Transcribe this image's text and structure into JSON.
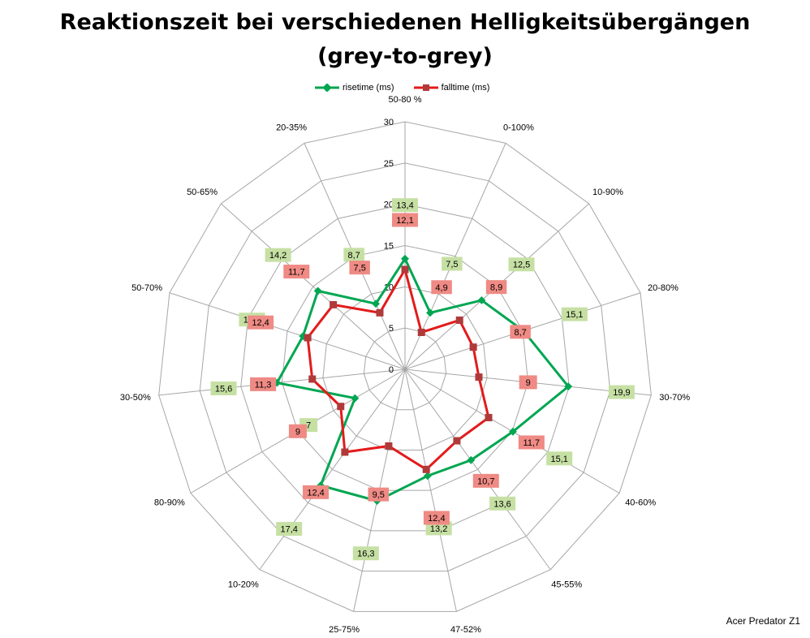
{
  "title_line1": "Reaktionszeit bei verschiedenen Helligkeitsübergängen",
  "title_line2": "(grey-to-grey)",
  "credit": "Acer Predator Z1",
  "colors": {
    "risetime": "#00a651",
    "falltime": "#e31b1b",
    "rise_label_bg": "#c6e0a4",
    "fall_label_bg": "#ef8a84",
    "grid": "#a6a6a6"
  },
  "chart_data": {
    "type": "radar",
    "categories": [
      "50-80 %",
      "0-100%",
      "10-90%",
      "20-80%",
      "30-70%",
      "40-60%",
      "45-55%",
      "47-52%",
      "25-75%",
      "10-20%",
      "80-90%",
      "30-50%",
      "50-70%",
      "50-65%",
      "20-35%"
    ],
    "rlim": [
      0,
      30
    ],
    "ticks": [
      0,
      5,
      10,
      15,
      20,
      25,
      30
    ],
    "legend_position": "top",
    "series": [
      {
        "name": "risetime (ms)",
        "values": [
          13.4,
          7.5,
          12.5,
          15.1,
          19.9,
          15.1,
          13.6,
          13.2,
          16.3,
          17.4,
          7,
          15.6,
          13,
          14.2,
          8.7
        ],
        "labels": [
          "13,4",
          "7,5",
          "12,5",
          "15,1",
          "19,9",
          "15,1",
          "13,6",
          "13,2",
          "16,3",
          "17,4",
          "7",
          "15,6",
          "13,0",
          "14,2",
          "8,7"
        ]
      },
      {
        "name": "falltime (ms)",
        "values": [
          12.1,
          4.9,
          8.9,
          8.7,
          9,
          11.7,
          10.7,
          12.4,
          9.5,
          12.4,
          9,
          11.3,
          12.4,
          11.7,
          7.5
        ],
        "labels": [
          "12,1",
          "4,9",
          "8,9",
          "8,7",
          "9",
          "11,7",
          "10,7",
          "12,4",
          "9,5",
          "12,4",
          "9",
          "11,3",
          "12,4",
          "11,7",
          "7,5"
        ]
      }
    ]
  }
}
